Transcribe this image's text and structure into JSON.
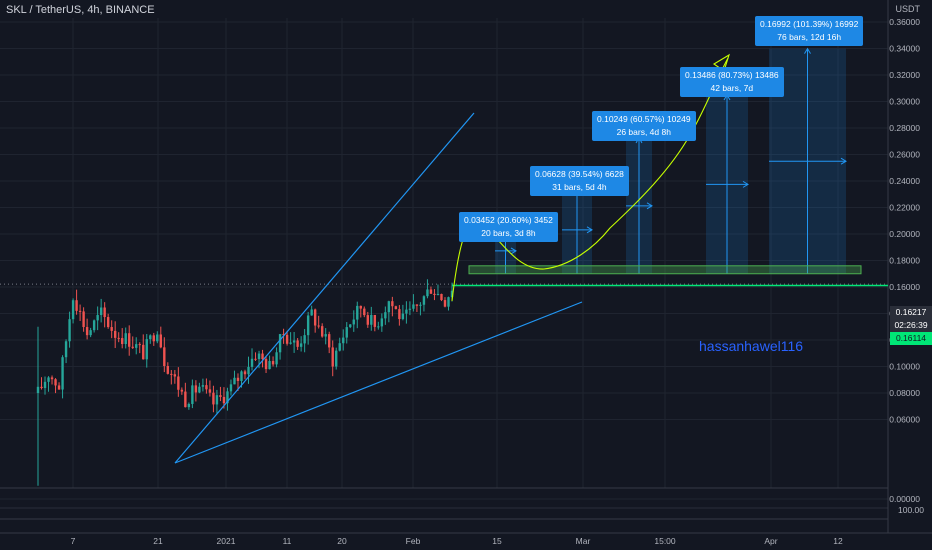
{
  "header": {
    "title": "SKL / TetherUS, 4h, BINANCE"
  },
  "axis": {
    "unit_label": "USDT",
    "bottom_value": "100.00"
  },
  "watermark": "hassanhawel116",
  "price_labels": {
    "last": "0.16217",
    "countdown": "02:26:39",
    "level": "0.16114"
  },
  "measures": [
    {
      "line1": "0.03452 (20.60%) 3452",
      "line2": "20 bars, 3d 8h"
    },
    {
      "line1": "0.06628 (39.54%) 6628",
      "line2": "31 bars, 5d 4h"
    },
    {
      "line1": "0.10249 (60.57%) 10249",
      "line2": "26 bars, 4d 8h"
    },
    {
      "line1": "0.13486 (80.73%) 13486",
      "line2": "42 bars, 7d"
    },
    {
      "line1": "0.16992 (101.39%) 16992",
      "line2": "76 bars, 12d 16h"
    }
  ],
  "colors": {
    "background": "#131722",
    "up": "#26a69a",
    "down": "#ef5350",
    "trendline": "#2196f3",
    "support": "#00e676",
    "zone": "#4caf50",
    "projection": "#c6ff00",
    "measure": "#1e88e5"
  },
  "chart_data": {
    "type": "candlestick",
    "title": "SKL / TetherUS, 4h, BINANCE",
    "ylabel": "USDT",
    "ylim": [
      -0.006,
      0.36
    ],
    "y_ticks": [
      "0.36000",
      "0.34000",
      "0.32000",
      "0.30000",
      "0.28000",
      "0.26000",
      "0.24000",
      "0.22000",
      "0.20000",
      "0.18000",
      "0.16000",
      "0.14000",
      "0.12000",
      "0.10000",
      "0.08000",
      "0.06000",
      "0.00000"
    ],
    "x_ticks": [
      "7",
      "21",
      "2021",
      "11",
      "20",
      "Feb",
      "15",
      "Mar",
      "15:00",
      "Apr",
      "12"
    ],
    "candles_price_path": [
      [
        0,
        0.08
      ],
      [
        3,
        0.095
      ],
      [
        6,
        0.085
      ],
      [
        10,
        0.155
      ],
      [
        14,
        0.125
      ],
      [
        18,
        0.14
      ],
      [
        22,
        0.125
      ],
      [
        26,
        0.12
      ],
      [
        30,
        0.11
      ],
      [
        34,
        0.13
      ],
      [
        36,
        0.105
      ],
      [
        40,
        0.085
      ],
      [
        42,
        0.075
      ],
      [
        46,
        0.085
      ],
      [
        50,
        0.072
      ],
      [
        54,
        0.08
      ],
      [
        58,
        0.095
      ],
      [
        62,
        0.11
      ],
      [
        66,
        0.1
      ],
      [
        70,
        0.125
      ],
      [
        74,
        0.115
      ],
      [
        78,
        0.14
      ],
      [
        82,
        0.12
      ],
      [
        84,
        0.105
      ],
      [
        88,
        0.13
      ],
      [
        92,
        0.145
      ],
      [
        96,
        0.13
      ],
      [
        100,
        0.15
      ],
      [
        104,
        0.135
      ],
      [
        108,
        0.145
      ],
      [
        112,
        0.16
      ],
      [
        116,
        0.15
      ],
      [
        118,
        0.16
      ]
    ],
    "support_level": 0.16114,
    "zone": [
      0.17,
      0.176
    ],
    "measures": [
      {
        "change": 0.03452,
        "percent": 20.6,
        "bars": 20,
        "duration": "3d 8h",
        "from": 0.17,
        "to": 0.2045
      },
      {
        "change": 0.06628,
        "percent": 39.54,
        "bars": 31,
        "duration": "5d 4h",
        "from": 0.17,
        "to": 0.2363
      },
      {
        "change": 0.10249,
        "percent": 60.57,
        "bars": 26,
        "duration": "4d 8h",
        "from": 0.17,
        "to": 0.2725
      },
      {
        "change": 0.13486,
        "percent": 80.73,
        "bars": 42,
        "duration": "7d",
        "from": 0.17,
        "to": 0.3049
      },
      {
        "change": 0.16992,
        "percent": 101.39,
        "bars": 76,
        "duration": "12d 16h",
        "from": 0.17,
        "to": 0.3399
      }
    ],
    "grid": true
  }
}
